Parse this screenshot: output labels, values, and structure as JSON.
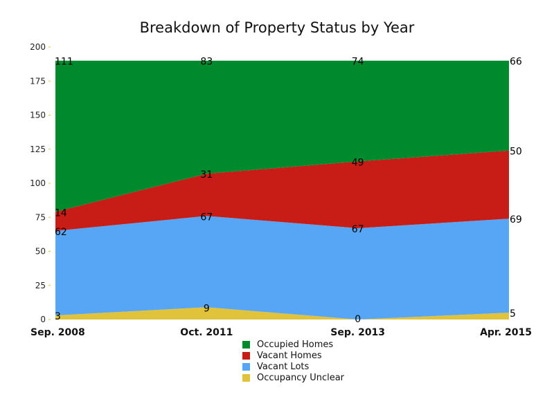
{
  "chart_data": {
    "type": "area",
    "stacked": true,
    "title": "Breakdown of Property Status by Year",
    "xlabel": "",
    "ylabel": "",
    "categories": [
      "Sep. 2008",
      "Oct. 2011",
      "Sep. 2013",
      "Apr. 2015"
    ],
    "ylim": [
      0,
      200
    ],
    "yticks": [
      0,
      25,
      50,
      75,
      100,
      125,
      150,
      175,
      200
    ],
    "grid": false,
    "legend_position": "bottom",
    "series": [
      {
        "name": "Occupancy Unclear",
        "values": [
          3,
          9,
          0,
          5
        ],
        "color": "#e0c33a"
      },
      {
        "name": "Vacant Lots",
        "values": [
          62,
          67,
          67,
          69
        ],
        "color": "#57a6f5"
      },
      {
        "name": "Vacant Homes",
        "values": [
          14,
          31,
          49,
          50
        ],
        "color": "#c81c16"
      },
      {
        "name": "Occupied Homes",
        "values": [
          111,
          83,
          74,
          66
        ],
        "color": "#008a2e"
      }
    ],
    "legend_order": [
      "Occupied Homes",
      "Vacant Homes",
      "Vacant Lots",
      "Occupancy Unclear"
    ]
  }
}
